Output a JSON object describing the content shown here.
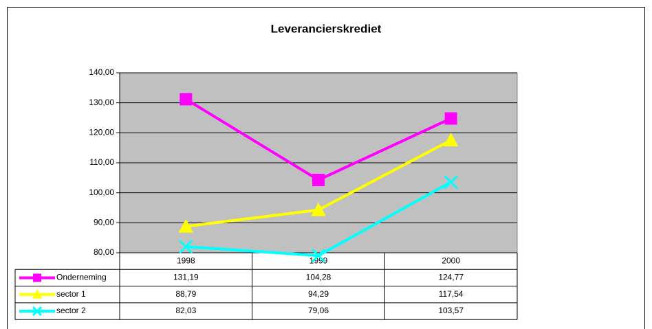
{
  "chart_data": {
    "type": "line",
    "title": "Leverancierskrediet",
    "categories": [
      "1998",
      "1999",
      "2000"
    ],
    "series": [
      {
        "name": "Onderneming",
        "color": "#ff00ff",
        "marker": "square",
        "values": [
          131.19,
          104.28,
          124.77
        ],
        "value_labels": [
          "131,19",
          "104,28",
          "124,77"
        ]
      },
      {
        "name": "sector 1",
        "color": "#ffff00",
        "marker": "triangle",
        "values": [
          88.79,
          94.29,
          117.54
        ],
        "value_labels": [
          "88,79",
          "94,29",
          "117,54"
        ]
      },
      {
        "name": "sector 2",
        "color": "#00ffff",
        "marker": "x",
        "values": [
          82.03,
          79.06,
          103.57
        ],
        "value_labels": [
          "82,03",
          "79,06",
          "103,57"
        ]
      }
    ],
    "ylim": [
      80,
      140
    ],
    "yticks": [
      {
        "value": 80,
        "label": "80,00"
      },
      {
        "value": 90,
        "label": "90,00"
      },
      {
        "value": 100,
        "label": "100,00"
      },
      {
        "value": 110,
        "label": "110,00"
      },
      {
        "value": 120,
        "label": "120,00"
      },
      {
        "value": 130,
        "label": "130,00"
      },
      {
        "value": 140,
        "label": "140,00"
      }
    ],
    "grid": true,
    "plot_background": "#c0c0c0"
  }
}
